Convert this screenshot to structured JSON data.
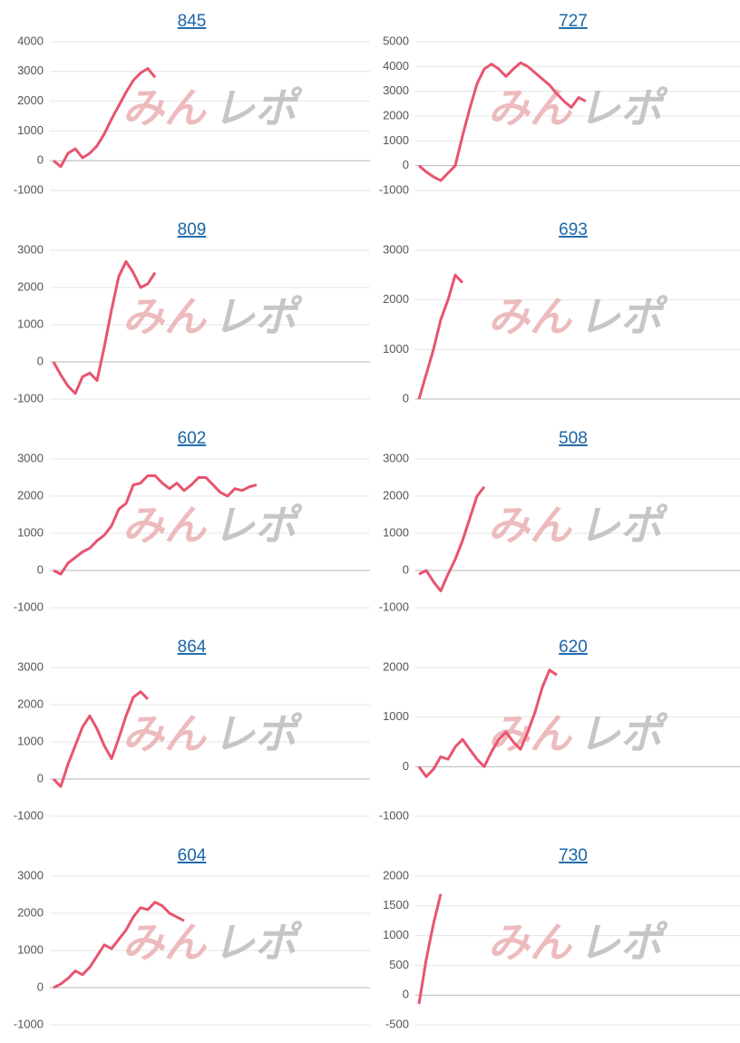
{
  "watermark": [
    "みん",
    "レポ"
  ],
  "chart_data": [
    {
      "type": "line",
      "title": "845",
      "ylim": [
        -1000,
        4000
      ],
      "yticks": [
        -1000,
        0,
        1000,
        2000,
        3000,
        4000
      ],
      "grid": true,
      "series": [
        {
          "color": "#e8546f",
          "values": [
            0,
            -200,
            250,
            400,
            100,
            250,
            500,
            900,
            1400,
            1850,
            2300,
            2700,
            2950,
            3100,
            2800
          ]
        }
      ]
    },
    {
      "type": "line",
      "title": "727",
      "ylim": [
        -1000,
        5000
      ],
      "yticks": [
        -1000,
        0,
        1000,
        2000,
        3000,
        4000,
        5000
      ],
      "grid": true,
      "series": [
        {
          "color": "#e8546f",
          "values": [
            0,
            -250,
            -450,
            -600,
            -300,
            0,
            1200,
            2300,
            3300,
            3900,
            4100,
            3900,
            3600,
            3900,
            4150,
            4000,
            3750,
            3500,
            3250,
            2900,
            2600,
            2350,
            2750,
            2600
          ]
        }
      ]
    },
    {
      "type": "line",
      "title": "809",
      "ylim": [
        -1000,
        3000
      ],
      "yticks": [
        -1000,
        0,
        1000,
        2000,
        3000
      ],
      "grid": true,
      "series": [
        {
          "color": "#e8546f",
          "values": [
            0,
            -350,
            -650,
            -850,
            -400,
            -300,
            -500,
            400,
            1400,
            2300,
            2700,
            2400,
            2000,
            2100,
            2400
          ]
        }
      ]
    },
    {
      "type": "line",
      "title": "693",
      "ylim": [
        0,
        3000
      ],
      "yticks": [
        0,
        1000,
        2000,
        3000
      ],
      "grid": true,
      "series": [
        {
          "color": "#e8546f",
          "values": [
            0,
            500,
            1000,
            1600,
            2000,
            2500,
            2350
          ]
        }
      ]
    },
    {
      "type": "line",
      "title": "602",
      "ylim": [
        -1000,
        3000
      ],
      "yticks": [
        -1000,
        0,
        1000,
        2000,
        3000
      ],
      "grid": true,
      "series": [
        {
          "color": "#e8546f",
          "values": [
            0,
            -100,
            200,
            350,
            500,
            600,
            800,
            950,
            1200,
            1650,
            1800,
            2300,
            2350,
            2550,
            2550,
            2350,
            2200,
            2350,
            2150,
            2300,
            2500,
            2500,
            2300,
            2100,
            2000,
            2200,
            2150,
            2250,
            2300
          ]
        }
      ]
    },
    {
      "type": "line",
      "title": "508",
      "ylim": [
        -1000,
        3000
      ],
      "yticks": [
        -1000,
        0,
        1000,
        2000,
        3000
      ],
      "grid": true,
      "series": [
        {
          "color": "#e8546f",
          "values": [
            -100,
            0,
            -300,
            -550,
            -100,
            300,
            800,
            1400,
            2000,
            2250
          ]
        }
      ]
    },
    {
      "type": "line",
      "title": "864",
      "ylim": [
        -1000,
        3000
      ],
      "yticks": [
        -1000,
        0,
        1000,
        2000,
        3000
      ],
      "grid": true,
      "series": [
        {
          "color": "#e8546f",
          "values": [
            0,
            -200,
            400,
            900,
            1400,
            1700,
            1350,
            900,
            550,
            1100,
            1700,
            2200,
            2350,
            2150
          ]
        }
      ]
    },
    {
      "type": "line",
      "title": "620",
      "ylim": [
        -1000,
        2000
      ],
      "yticks": [
        -1000,
        0,
        1000,
        2000
      ],
      "grid": true,
      "series": [
        {
          "color": "#e8546f",
          "values": [
            0,
            -200,
            -50,
            200,
            150,
            400,
            550,
            350,
            150,
            0,
            300,
            550,
            700,
            500,
            350,
            700,
            1100,
            1600,
            1950,
            1850
          ]
        }
      ]
    },
    {
      "type": "line",
      "title": "604",
      "ylim": [
        -1000,
        3000
      ],
      "yticks": [
        -1000,
        0,
        1000,
        2000,
        3000
      ],
      "grid": true,
      "series": [
        {
          "color": "#e8546f",
          "values": [
            0,
            100,
            250,
            450,
            350,
            550,
            850,
            1150,
            1050,
            1300,
            1550,
            1900,
            2150,
            2100,
            2300,
            2200,
            2000,
            1900,
            1800
          ]
        }
      ]
    },
    {
      "type": "line",
      "title": "730",
      "ylim": [
        -500,
        2000
      ],
      "yticks": [
        -500,
        0,
        500,
        1000,
        1500,
        2000
      ],
      "grid": true,
      "series": [
        {
          "color": "#e8546f",
          "values": [
            -150,
            600,
            1200,
            1700
          ]
        }
      ]
    }
  ]
}
